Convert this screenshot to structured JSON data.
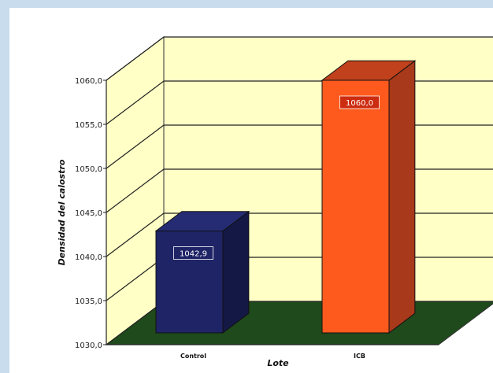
{
  "chart_data": {
    "type": "bar",
    "categories": [
      "Control",
      "ICB"
    ],
    "values": [
      1042.9,
      1060.0
    ],
    "data_labels": [
      "1042,9",
      "1060,0"
    ],
    "xlabel": "Lote",
    "ylabel": "Densidad del calostro",
    "ylim": [
      1030,
      1060
    ],
    "yticks": [
      "1030,0",
      "1035,0",
      "1040,0",
      "1045,0",
      "1050,0",
      "1055,0",
      "1060,0"
    ],
    "grid": true,
    "legend": "none",
    "colors": {
      "bars": [
        "#1f2466",
        "#ff5a1e"
      ],
      "bar_sides": [
        "#141845",
        "#a8391a"
      ],
      "bar_tops": [
        "#262c73",
        "#c0411c"
      ],
      "label_bg": [
        "#1f2466",
        "#cc2c10"
      ],
      "wall": "#ffffc6",
      "floor": "#1f4a1c"
    }
  }
}
